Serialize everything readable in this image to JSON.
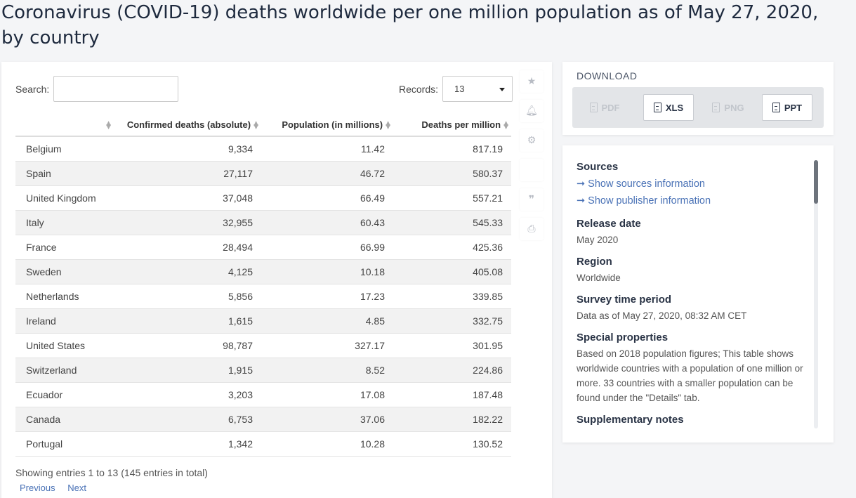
{
  "page": {
    "title": "Coronavirus (COVID-19) deaths worldwide per one million population as of May 27, 2020, by country"
  },
  "controls": {
    "search_label": "Search:",
    "search_value": "",
    "records_label": "Records:",
    "records_value": "13"
  },
  "table": {
    "headers": [
      "",
      "Confirmed deaths (absolute)",
      "Population (in millions)",
      "Deaths per million"
    ],
    "rows": [
      [
        "Belgium",
        "9,334",
        "11.42",
        "817.19"
      ],
      [
        "Spain",
        "27,117",
        "46.72",
        "580.37"
      ],
      [
        "United Kingdom",
        "37,048",
        "66.49",
        "557.21"
      ],
      [
        "Italy",
        "32,955",
        "60.43",
        "545.33"
      ],
      [
        "France",
        "28,494",
        "66.99",
        "425.36"
      ],
      [
        "Sweden",
        "4,125",
        "10.18",
        "405.08"
      ],
      [
        "Netherlands",
        "5,856",
        "17.23",
        "339.85"
      ],
      [
        "Ireland",
        "1,615",
        "4.85",
        "332.75"
      ],
      [
        "United States",
        "98,787",
        "327.17",
        "301.95"
      ],
      [
        "Switzerland",
        "1,915",
        "8.52",
        "224.86"
      ],
      [
        "Ecuador",
        "3,203",
        "17.08",
        "187.48"
      ],
      [
        "Canada",
        "6,753",
        "37.06",
        "182.22"
      ],
      [
        "Portugal",
        "1,342",
        "10.28",
        "130.52"
      ]
    ],
    "showing": "Showing entries 1 to 13 (145 entries in total)",
    "prev_label": "Previous",
    "next_label": "Next"
  },
  "tools": [
    "star-icon",
    "bell-icon",
    "gear-icon",
    "blank",
    "quote-icon",
    "print-icon"
  ],
  "download": {
    "title": "DOWNLOAD",
    "pdf": "PDF",
    "xls": "XLS",
    "png": "PNG",
    "ppt": "PPT"
  },
  "info": {
    "sources_heading": "Sources",
    "show_sources": "Show sources information",
    "show_publisher": "Show publisher information",
    "release_heading": "Release date",
    "release_value": "May 2020",
    "region_heading": "Region",
    "region_value": "Worldwide",
    "survey_heading": "Survey time period",
    "survey_value": "Data as of May 27, 2020, 08:32 AM CET",
    "special_heading": "Special properties",
    "special_value": "Based on 2018 population figures; This table shows worldwide countries with a population of one million or more. 33 countries with a smaller population can be found under the \"Details\" tab.",
    "supplementary_heading": "Supplementary notes"
  },
  "colors": {
    "link": "#4a72b6",
    "title": "#1e2a3e",
    "stripe": "#f2f2f2"
  }
}
